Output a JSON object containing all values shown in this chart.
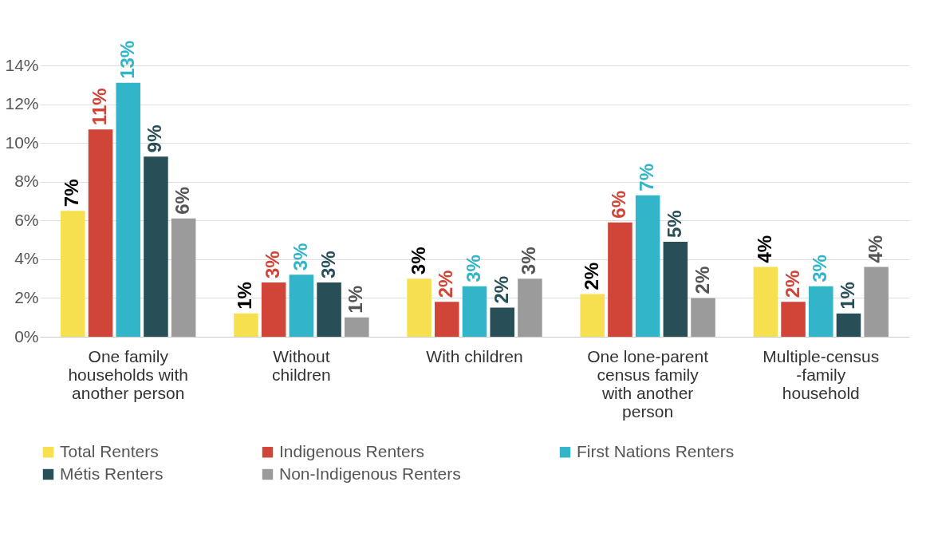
{
  "chart_data": {
    "type": "bar",
    "categories": [
      "One family households with another person",
      "Without children",
      "With children",
      "One lone-parent census family with another person",
      "Multiple-census -family household"
    ],
    "series": [
      {
        "name": "Total Renters",
        "color": "#f6e050",
        "values": [
          6.5,
          1.2,
          3.0,
          2.2,
          3.6
        ],
        "value_labels": [
          "7%",
          "1%",
          "3%",
          "2%",
          "4%"
        ]
      },
      {
        "name": "Indigenous Renters",
        "color": "#d04537",
        "values": [
          10.7,
          2.8,
          1.8,
          5.9,
          1.8
        ],
        "value_labels": [
          "11%",
          "3%",
          "2%",
          "6%",
          "2%"
        ]
      },
      {
        "name": "First Nations Renters",
        "color": "#33b5c9",
        "values": [
          13.1,
          3.2,
          2.6,
          7.3,
          2.6
        ],
        "value_labels": [
          "13%",
          "3%",
          "3%",
          "7%",
          "3%"
        ]
      },
      {
        "name": "Métis Renters",
        "color": "#284f58",
        "values": [
          9.3,
          2.8,
          1.5,
          4.9,
          1.2
        ],
        "value_labels": [
          "9%",
          "3%",
          "2%",
          "5%",
          "1%"
        ]
      },
      {
        "name": "Non-Indigenous Renters",
        "color": "#9b9b9b",
        "values": [
          6.1,
          1.0,
          3.0,
          2.0,
          3.6
        ],
        "value_labels": [
          "6%",
          "1%",
          "3%",
          "2%",
          "4%"
        ]
      }
    ],
    "ylim": [
      0,
      14
    ],
    "yticks": [
      {
        "value": 0,
        "label": "0%"
      },
      {
        "value": 2,
        "label": "2%"
      },
      {
        "value": 4,
        "label": "4%"
      },
      {
        "value": 6,
        "label": "6%"
      },
      {
        "value": 8,
        "label": "8%"
      },
      {
        "value": 10,
        "label": "10%"
      },
      {
        "value": 12,
        "label": "12%"
      },
      {
        "value": 14,
        "label": "14%"
      }
    ],
    "grid": "y",
    "legend": "bottom"
  }
}
